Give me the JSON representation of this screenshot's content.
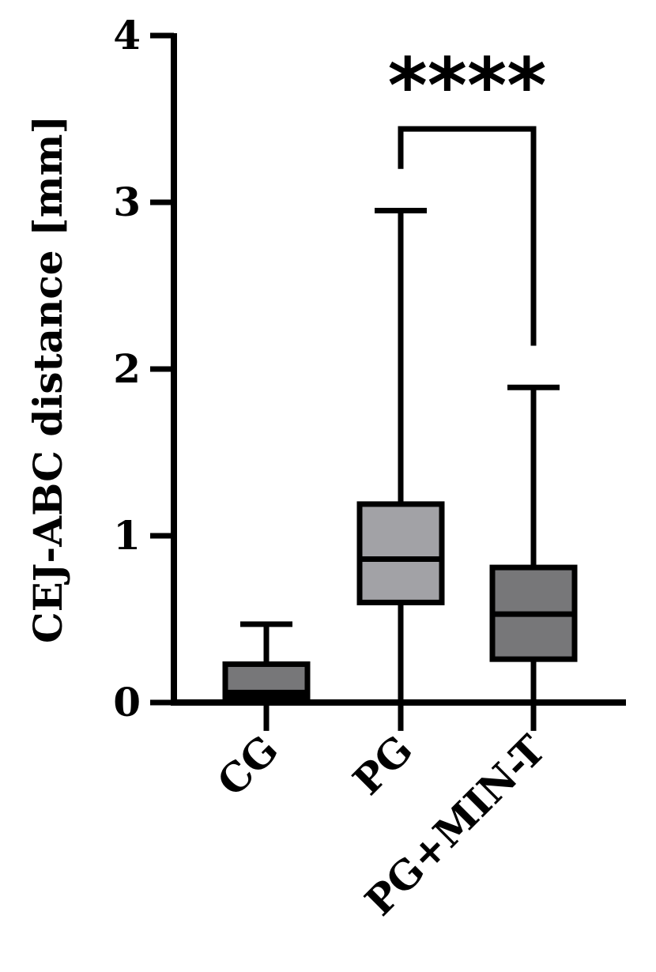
{
  "chart_data": {
    "type": "box",
    "title": "",
    "xlabel": "",
    "ylabel": "CEJ-ABC distance [mm]",
    "ylim": [
      0,
      4
    ],
    "yticks": [
      0,
      1,
      2,
      3,
      4
    ],
    "ytick_labels": [
      "0",
      "1",
      "2",
      "3",
      "4"
    ],
    "grid": false,
    "legend": "none",
    "categories": [
      "CG",
      "PG",
      "PG+MIN-T"
    ],
    "boxes": [
      {
        "category": "CG",
        "min": -0.17,
        "q1": 0.03,
        "median": 0.06,
        "q3": 0.23,
        "max": 0.47,
        "fill": "#777779"
      },
      {
        "category": "PG",
        "min": -0.17,
        "q1": 0.6,
        "median": 0.86,
        "q3": 1.19,
        "max": 2.95,
        "fill": "#a2a2a6"
      },
      {
        "category": "PG+MIN-T",
        "min": -0.17,
        "q1": 0.26,
        "median": 0.53,
        "q3": 0.81,
        "max": 1.89,
        "fill": "#777779"
      }
    ],
    "significance": {
      "from": "PG",
      "to": "PG+MIN-T",
      "label": "****",
      "bracket_y": 3.44,
      "left_end": 3.2,
      "right_end": 2.14
    },
    "colors": {
      "axis": "#000000",
      "box_edge": "#000000"
    }
  }
}
